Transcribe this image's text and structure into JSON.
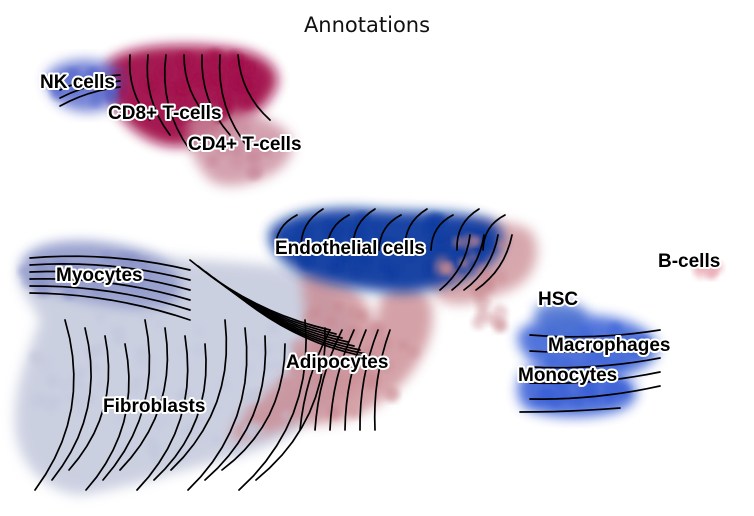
{
  "title": "Annotations",
  "colors": {
    "NK cells": "#5566cc",
    "CD8+ T-cells": "#a1104a",
    "CD4+ T-cells": "#c98a9c",
    "Myocytes": "#8892c8",
    "Endothelial cells": "#0a3aa0",
    "Fibroblasts": "#c3c8dc",
    "Adipocytes": "#c98a92",
    "HSC": "#4a6fd0",
    "Macrophages": "#3f66d8",
    "Monocytes": "#3a60d6",
    "B-cells": "#e59aa6",
    "streamlines": "#000000"
  },
  "clusters": [
    {
      "key": "nk",
      "label": "NK cells"
    },
    {
      "key": "cd8",
      "label": "CD8+ T-cells"
    },
    {
      "key": "cd4",
      "label": "CD4+ T-cells"
    },
    {
      "key": "myo",
      "label": "Myocytes"
    },
    {
      "key": "endo",
      "label": "Endothelial cells"
    },
    {
      "key": "fib",
      "label": "Fibroblasts"
    },
    {
      "key": "adipo",
      "label": "Adipocytes"
    },
    {
      "key": "hsc",
      "label": "HSC"
    },
    {
      "key": "macro",
      "label": "Macrophages"
    },
    {
      "key": "mono",
      "label": "Monocytes"
    },
    {
      "key": "bcell",
      "label": "B-cells"
    }
  ]
}
